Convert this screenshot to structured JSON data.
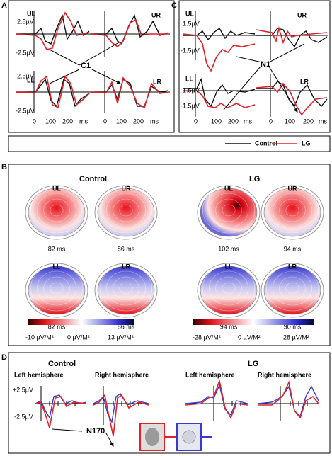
{
  "panel_a": {
    "label": "A",
    "ul": {
      "quadrant": "UL",
      "top": "2.5µV",
      "bottom": "-2.5µV"
    },
    "ur": "UR",
    "component": "C1",
    "ll": {
      "quadrant": "LL",
      "top": "2.5µV",
      "bottom": "-2.5µV"
    },
    "lr": "LR",
    "x_left": [
      "0",
      "100",
      "200",
      "ms"
    ],
    "x_right": [
      "0",
      "100",
      "200",
      "ms"
    ]
  },
  "panel_c": {
    "label": "C",
    "ul": {
      "quadrant": "UL",
      "top": "1.5µV",
      "bottom": "-1.5µV"
    },
    "ur": "UR",
    "component": "N1",
    "ll": {
      "quadrant": "LL",
      "top": "1.5µV",
      "bottom": "-1.5µV"
    },
    "lr": "LR",
    "x_left": [
      "0",
      "100",
      "200",
      "ms"
    ],
    "x_right": [
      "0",
      "100",
      "200",
      "ms"
    ]
  },
  "legend": [
    "Control",
    "LG"
  ],
  "panel_b": {
    "label": "B",
    "control": {
      "title": "Control",
      "maps": [
        [
          "UL",
          "82 ms"
        ],
        [
          "UR",
          "86 ms"
        ],
        [
          "LL",
          "82 ms"
        ],
        [
          "LR",
          "86 ms"
        ]
      ],
      "scale": [
        "-10 µV/M²",
        "0 µV/M²",
        "13 µV/M²"
      ]
    },
    "lg": {
      "title": "LG",
      "maps": [
        [
          "UL",
          "102 ms"
        ],
        [
          "UR",
          "94 ms"
        ],
        [
          "LL",
          "94 ms"
        ],
        [
          "LR",
          "90 ms"
        ]
      ],
      "scale": [
        "-28 µV/M²",
        "0 µV/M²",
        "28 µV/M²"
      ]
    }
  },
  "panel_d": {
    "label": "D",
    "control": {
      "title": "Control",
      "left": "Left hemisphere",
      "right": "Right hemisphere"
    },
    "lg": {
      "title": "LG",
      "left": "Left hemisphere",
      "right": "Right hemisphere"
    },
    "amp_top": "+2.5µV",
    "amp_bottom": "-2.5µV",
    "component": "N170"
  }
}
